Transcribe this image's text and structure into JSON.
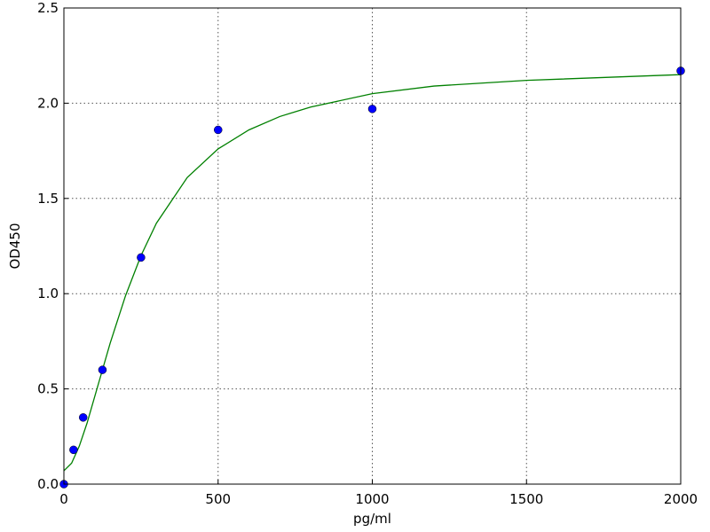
{
  "chart_data": {
    "type": "scatter",
    "xlabel": "pg/ml",
    "ylabel": "OD450",
    "xlim": [
      0,
      2000
    ],
    "ylim": [
      0,
      2.5
    ],
    "xticks": [
      0,
      500,
      1000,
      1500,
      2000
    ],
    "yticks": [
      {
        "value": 0,
        "label": "0.0"
      },
      {
        "value": 0.5,
        "label": "0.5"
      },
      {
        "value": 1,
        "label": "1.0"
      },
      {
        "value": 1.5,
        "label": "1.5"
      },
      {
        "value": 2,
        "label": "2.0"
      },
      {
        "value": 2.5,
        "label": "2.5"
      }
    ],
    "grid": true,
    "series": [
      {
        "type": "scatter",
        "color": "#0000ff",
        "x": [
          0,
          31.25,
          62.5,
          125,
          250,
          500,
          1000,
          2000
        ],
        "values": [
          0,
          0.18,
          0.35,
          0.6,
          1.19,
          1.86,
          1.97,
          2.17
        ]
      },
      {
        "type": "line",
        "color": "#008000",
        "x": [
          0,
          25,
          50,
          75,
          100,
          125,
          150,
          200,
          250,
          300,
          400,
          500,
          600,
          700,
          800,
          1000,
          1200,
          1500,
          2000
        ],
        "values": [
          0.07,
          0.11,
          0.2,
          0.32,
          0.46,
          0.6,
          0.74,
          0.99,
          1.2,
          1.37,
          1.61,
          1.76,
          1.86,
          1.93,
          1.98,
          2.05,
          2.09,
          2.12,
          2.15
        ]
      }
    ]
  }
}
